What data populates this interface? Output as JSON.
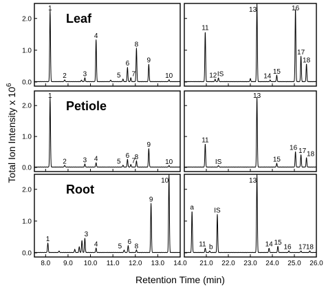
{
  "chart_data": {
    "type": "line",
    "y_axis_title": "Total Ion Intensity x 10",
    "y_axis_title_exponent": "6",
    "x_axis_title": "Retention Time (min)",
    "y_ticks": [
      "0.0",
      "1.0",
      "2.0"
    ],
    "x_ticks_left": [
      "8.0",
      "9.0",
      "10.0",
      "11.0",
      "12.0",
      "13.0",
      "14.0"
    ],
    "x_ticks_right": [
      "21.0",
      "22.0",
      "23.0",
      "24.0",
      "25.0",
      "26.0"
    ],
    "x_range_left": [
      7.5,
      14.0
    ],
    "x_range_right": [
      20.0,
      26.0
    ],
    "y_range": [
      0,
      2.45
    ],
    "rows": [
      {
        "name": "Leaf",
        "peaks_left": [
          {
            "label": "1",
            "x": 8.2,
            "y": 2.25
          },
          {
            "label": "2",
            "x": 8.85,
            "y": 0.06
          },
          {
            "label": "3",
            "x": 9.75,
            "y": 0.12
          },
          {
            "label": "",
            "x": 9.6,
            "y": 0.05
          },
          {
            "label": "4",
            "x": 10.25,
            "y": 1.32
          },
          {
            "label": "",
            "x": 10.9,
            "y": 0.05
          },
          {
            "label": "5",
            "x": 11.45,
            "y": 0.08
          },
          {
            "label": "6",
            "x": 11.65,
            "y": 0.45
          },
          {
            "label": "7",
            "x": 11.8,
            "y": 0.12
          },
          {
            "label": "8",
            "x": 12.05,
            "y": 1.05
          },
          {
            "label": "9",
            "x": 12.6,
            "y": 0.55
          },
          {
            "label": "10",
            "x": 13.5,
            "y": 0.06
          }
        ],
        "peaks_right": [
          {
            "label": "11",
            "x": 20.95,
            "y": 1.57
          },
          {
            "label": "12",
            "x": 21.4,
            "y": 0.08
          },
          {
            "label": "IS",
            "x": 21.55,
            "y": 0.12
          },
          {
            "label": "",
            "x": 23.0,
            "y": 0.1
          },
          {
            "label": "13",
            "x": 23.3,
            "y": 2.45
          },
          {
            "label": "14",
            "x": 23.9,
            "y": 0.05
          },
          {
            "label": "15",
            "x": 24.2,
            "y": 0.2
          },
          {
            "label": "16",
            "x": 25.05,
            "y": 2.3
          },
          {
            "label": "17",
            "x": 25.3,
            "y": 0.8
          },
          {
            "label": "18",
            "x": 25.55,
            "y": 0.55
          }
        ]
      },
      {
        "name": "Petiole",
        "peaks_left": [
          {
            "label": "1",
            "x": 8.2,
            "y": 2.25
          },
          {
            "label": "2",
            "x": 8.85,
            "y": 0.06
          },
          {
            "label": "3",
            "x": 9.75,
            "y": 0.1
          },
          {
            "label": "4",
            "x": 10.25,
            "y": 0.14
          },
          {
            "label": "5",
            "x": 11.45,
            "y": 0.06
          },
          {
            "label": "6",
            "x": 11.65,
            "y": 0.25
          },
          {
            "label": "7",
            "x": 11.8,
            "y": 0.08
          },
          {
            "label": "8",
            "x": 12.05,
            "y": 0.2
          },
          {
            "label": "9",
            "x": 12.6,
            "y": 0.6
          },
          {
            "label": "10",
            "x": 13.5,
            "y": 0.05
          }
        ],
        "peaks_right": [
          {
            "label": "11",
            "x": 20.95,
            "y": 0.75
          },
          {
            "label": "IS",
            "x": 21.55,
            "y": 0.05
          },
          {
            "label": "13",
            "x": 23.3,
            "y": 2.25
          },
          {
            "label": "15",
            "x": 24.2,
            "y": 0.12
          },
          {
            "label": "16",
            "x": 25.05,
            "y": 0.5
          },
          {
            "label": "17",
            "x": 25.3,
            "y": 0.4
          },
          {
            "label": "18",
            "x": 25.55,
            "y": 0.3
          }
        ]
      },
      {
        "name": "Root",
        "peaks_left": [
          {
            "label": "1",
            "x": 8.1,
            "y": 0.3
          },
          {
            "label": "",
            "x": 8.6,
            "y": 0.05
          },
          {
            "label": "",
            "x": 9.3,
            "y": 0.1
          },
          {
            "label": "",
            "x": 9.5,
            "y": 0.18
          },
          {
            "label": "",
            "x": 9.62,
            "y": 0.38
          },
          {
            "label": "3",
            "x": 9.75,
            "y": 0.45
          },
          {
            "label": "4",
            "x": 10.25,
            "y": 0.14
          },
          {
            "label": "5",
            "x": 11.5,
            "y": 0.08
          },
          {
            "label": "6",
            "x": 11.68,
            "y": 0.22
          },
          {
            "label": "8",
            "x": 12.05,
            "y": 0.08
          },
          {
            "label": "9",
            "x": 12.7,
            "y": 1.55
          },
          {
            "label": "10",
            "x": 13.5,
            "y": 2.45
          }
        ],
        "peaks_right": [
          {
            "label": "a",
            "x": 20.35,
            "y": 1.3
          },
          {
            "label": "11",
            "x": 20.95,
            "y": 0.14
          },
          {
            "label": "b",
            "x": 21.15,
            "y": 0.05
          },
          {
            "label": "IS",
            "x": 21.5,
            "y": 1.2
          },
          {
            "label": "13",
            "x": 23.3,
            "y": 2.45
          },
          {
            "label": "14",
            "x": 23.85,
            "y": 0.14
          },
          {
            "label": "15",
            "x": 24.25,
            "y": 0.2
          },
          {
            "label": "16",
            "x": 24.75,
            "y": 0.05
          },
          {
            "label": "17",
            "x": 25.3,
            "y": 0.05
          },
          {
            "label": "18",
            "x": 25.7,
            "y": 0.05
          }
        ]
      }
    ]
  }
}
